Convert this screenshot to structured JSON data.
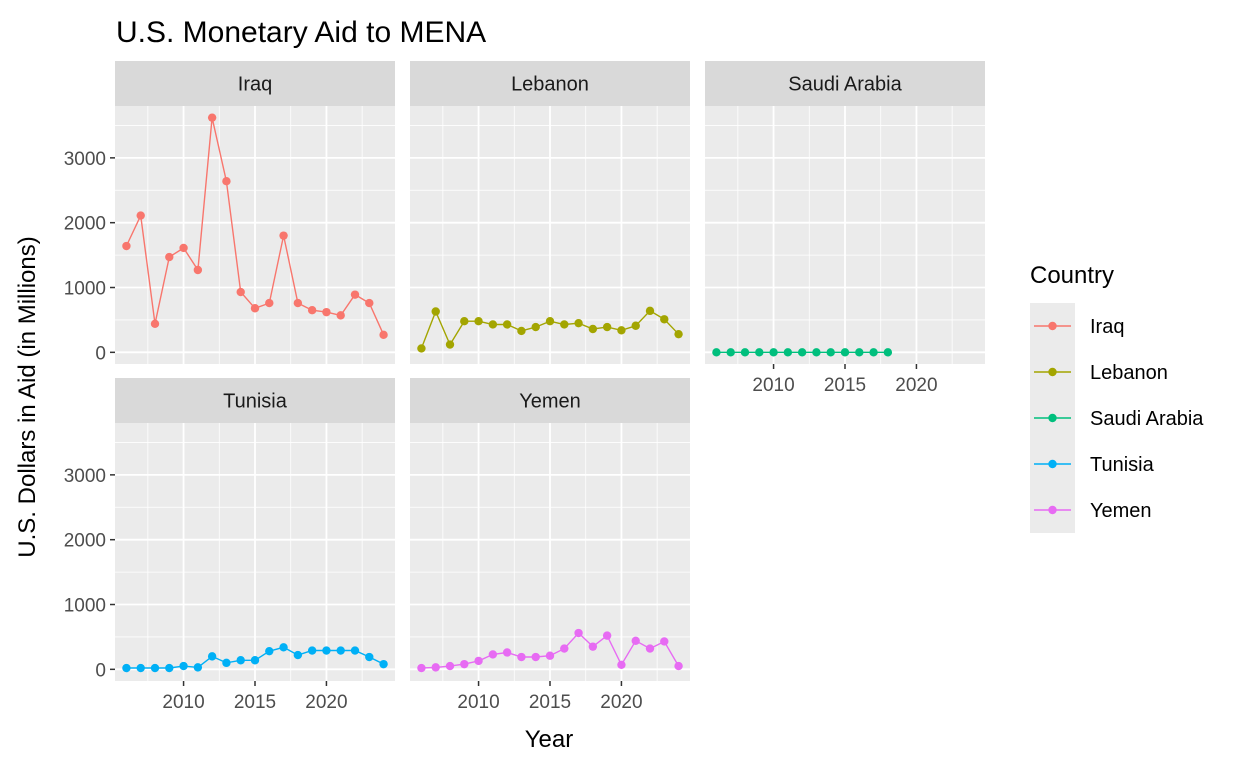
{
  "chart_data": {
    "type": "line",
    "title": "U.S. Monetary Aid to MENA",
    "xlabel": "Year",
    "ylabel": "U.S. Dollars in Aid (in Millions)",
    "xlim": [
      2005.2,
      2024.8
    ],
    "ylim": [
      -180,
      3800
    ],
    "x_ticks": [
      2010,
      2015,
      2020
    ],
    "y_ticks": [
      0,
      1000,
      2000,
      3000
    ],
    "grid": true,
    "facet_layout": "3 columns x 2 rows, shared axes",
    "legend": {
      "title": "Country",
      "position": "right",
      "entries": [
        "Iraq",
        "Lebanon",
        "Saudi Arabia",
        "Tunisia",
        "Yemen"
      ]
    },
    "series": [
      {
        "name": "Iraq",
        "color": "#F8766D",
        "x": [
          2006,
          2007,
          2008,
          2009,
          2010,
          2011,
          2012,
          2013,
          2014,
          2015,
          2016,
          2017,
          2018,
          2019,
          2020,
          2021,
          2022,
          2023,
          2024
        ],
        "y": [
          1640,
          2110,
          440,
          1470,
          1610,
          1270,
          3620,
          2640,
          930,
          680,
          760,
          1800,
          760,
          650,
          620,
          570,
          890,
          760,
          270
        ]
      },
      {
        "name": "Lebanon",
        "color": "#A3A500",
        "x": [
          2006,
          2007,
          2008,
          2009,
          2010,
          2011,
          2012,
          2013,
          2014,
          2015,
          2016,
          2017,
          2018,
          2019,
          2020,
          2021,
          2022,
          2023,
          2024
        ],
        "y": [
          60,
          630,
          120,
          480,
          480,
          430,
          430,
          330,
          390,
          480,
          430,
          450,
          360,
          390,
          340,
          410,
          640,
          510,
          280
        ]
      },
      {
        "name": "Saudi Arabia",
        "color": "#00BF7D",
        "x": [
          2006,
          2007,
          2008,
          2009,
          2010,
          2011,
          2012,
          2013,
          2014,
          2015,
          2016,
          2017,
          2018
        ],
        "y": [
          0,
          0,
          0,
          0,
          0,
          0,
          0,
          0,
          0,
          0,
          0,
          0,
          0
        ]
      },
      {
        "name": "Tunisia",
        "color": "#00B0F6",
        "x": [
          2006,
          2007,
          2008,
          2009,
          2010,
          2011,
          2012,
          2013,
          2014,
          2015,
          2016,
          2017,
          2018,
          2019,
          2020,
          2021,
          2022,
          2023,
          2024
        ],
        "y": [
          20,
          20,
          20,
          20,
          50,
          30,
          200,
          100,
          140,
          140,
          280,
          340,
          220,
          290,
          290,
          290,
          290,
          190,
          80
        ]
      },
      {
        "name": "Yemen",
        "color": "#E76BF3",
        "x": [
          2006,
          2007,
          2008,
          2009,
          2010,
          2011,
          2012,
          2013,
          2014,
          2015,
          2016,
          2017,
          2018,
          2019,
          2020,
          2021,
          2022,
          2023,
          2024
        ],
        "y": [
          20,
          30,
          50,
          80,
          130,
          230,
          260,
          190,
          190,
          210,
          320,
          560,
          350,
          520,
          70,
          440,
          320,
          430,
          50
        ]
      }
    ]
  }
}
